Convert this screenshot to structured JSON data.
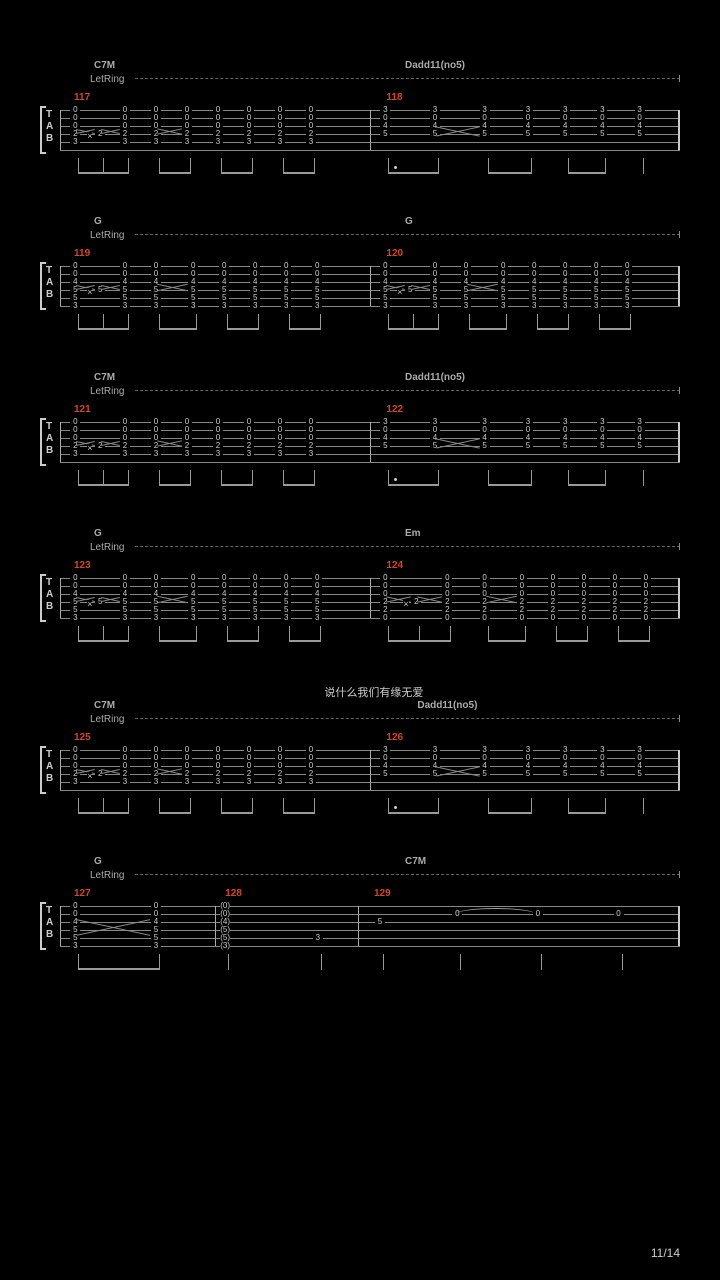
{
  "page_number": "11/14",
  "background_color": "#000000",
  "staff_line_color": "#888888",
  "text_color": "#cccccc",
  "measure_num_color": "#d64520",
  "chord_color": "#aaaaaa",
  "tab_label": {
    "l1": "T",
    "l2": "A",
    "l3": "B"
  },
  "letring_text": "LetRing",
  "lyric": "说什么我们有缘无爱",
  "systems": [
    {
      "chord_left": "C7M",
      "chord_right": "Dadd11(no5)",
      "measure_left": "117",
      "measure_right": "118",
      "has_letring": true,
      "lyric_above": false,
      "chord_right_offset": 0.55,
      "pattern": "A"
    },
    {
      "chord_left": "G",
      "chord_right": "G",
      "measure_left": "119",
      "measure_right": "120",
      "has_letring": true,
      "lyric_above": false,
      "chord_right_offset": 0.55,
      "pattern": "B"
    },
    {
      "chord_left": "C7M",
      "chord_right": "Dadd11(no5)",
      "measure_left": "121",
      "measure_right": "122",
      "has_letring": true,
      "lyric_above": false,
      "chord_right_offset": 0.55,
      "pattern": "A"
    },
    {
      "chord_left": "G",
      "chord_right": "Em",
      "measure_left": "123",
      "measure_right": "124",
      "has_letring": true,
      "lyric_above": false,
      "chord_right_offset": 0.55,
      "pattern": "C"
    },
    {
      "chord_left": "C7M",
      "chord_right": "Dadd11(no5)",
      "measure_left": "125",
      "measure_right": "126",
      "has_letring": true,
      "lyric_above": true,
      "lyric_offset": 0.42,
      "chord_right_offset": 0.57,
      "pattern": "A"
    },
    {
      "chord_left": "G",
      "chord_right": "C7M",
      "measure_left": "127",
      "measure_mid": "128",
      "measure_right": "129",
      "has_letring": true,
      "lyric_above": false,
      "chord_right_offset": 0.55,
      "pattern": "D"
    }
  ],
  "layout": {
    "staff_width": 620,
    "staff_left_inset": 24,
    "string_count": 6,
    "string_spacing": 8
  },
  "columns": {
    "A_left": [
      {
        "x": 0.04,
        "frets": [
          "0",
          "0",
          "0",
          "2",
          "3"
        ],
        "beam_group": 0,
        "slide_to_next": true
      },
      {
        "x": 0.12,
        "frets": [
          "2"
        ],
        "strings": [
          3
        ],
        "beam_group": 0,
        "xmark": true,
        "slide_to_next": true
      },
      {
        "x": 0.2,
        "frets": [
          "0",
          "0",
          "0",
          "2",
          "3"
        ],
        "beam_group": 0
      },
      {
        "x": 0.3,
        "frets": [
          "0",
          "0",
          "0",
          "2",
          "3"
        ],
        "beam_group": 1,
        "slide_to_next": true
      },
      {
        "x": 0.4,
        "frets": [
          "0",
          "0",
          "0",
          "2",
          "3"
        ],
        "beam_group": 1
      },
      {
        "x": 0.5,
        "frets": [
          "0",
          "0",
          "0",
          "2",
          "3"
        ],
        "beam_group": 2
      },
      {
        "x": 0.6,
        "frets": [
          "0",
          "0",
          "0",
          "2",
          "3"
        ],
        "beam_group": 2
      },
      {
        "x": 0.7,
        "frets": [
          "0",
          "0",
          "0",
          "2",
          "3"
        ],
        "beam_group": 3
      },
      {
        "x": 0.8,
        "frets": [
          "0",
          "0",
          "0",
          "2",
          "3"
        ],
        "beam_group": 3
      }
    ],
    "A_right": [
      {
        "x": 0.04,
        "frets": [
          "3",
          "0",
          "4",
          "5"
        ],
        "strings": [
          0,
          1,
          2,
          3
        ],
        "beam_group": 0,
        "dotted": true
      },
      {
        "x": 0.2,
        "frets": [
          "3",
          "0",
          "4",
          "5"
        ],
        "strings": [
          0,
          1,
          2,
          3
        ],
        "beam_group": 0,
        "slide_to_next": true
      },
      {
        "x": 0.36,
        "frets": [
          "3",
          "0",
          "4",
          "5"
        ],
        "strings": [
          0,
          1,
          2,
          3
        ],
        "beam_group": 1
      },
      {
        "x": 0.5,
        "frets": [
          "3",
          "0",
          "4",
          "5"
        ],
        "strings": [
          0,
          1,
          2,
          3
        ],
        "beam_group": 1
      },
      {
        "x": 0.62,
        "frets": [
          "3",
          "0",
          "4",
          "5"
        ],
        "strings": [
          0,
          1,
          2,
          3
        ],
        "beam_group": 2
      },
      {
        "x": 0.74,
        "frets": [
          "3",
          "0",
          "4",
          "5"
        ],
        "strings": [
          0,
          1,
          2,
          3
        ],
        "beam_group": 2
      },
      {
        "x": 0.86,
        "frets": [
          "3",
          "0",
          "4",
          "5"
        ],
        "strings": [
          0,
          1,
          2,
          3
        ],
        "beam_group": 3
      }
    ],
    "B_left": [
      {
        "x": 0.04,
        "frets": [
          "0",
          "0",
          "4",
          "5",
          "5",
          "3"
        ],
        "strings": [
          0,
          1,
          2,
          3,
          4,
          5
        ],
        "beam_group": 0,
        "slide_to_next": true
      },
      {
        "x": 0.12,
        "frets": [
          "5"
        ],
        "strings": [
          3
        ],
        "beam_group": 0,
        "xmark": true,
        "slide_to_next": true
      },
      {
        "x": 0.2,
        "frets": [
          "0",
          "0",
          "4",
          "5",
          "5",
          "3"
        ],
        "strings": [
          0,
          1,
          2,
          3,
          4,
          5
        ],
        "beam_group": 0
      },
      {
        "x": 0.3,
        "frets": [
          "0",
          "0",
          "4",
          "5",
          "5",
          "3"
        ],
        "strings": [
          0,
          1,
          2,
          3,
          4,
          5
        ],
        "beam_group": 1,
        "slide_to_next": true
      },
      {
        "x": 0.42,
        "frets": [
          "0",
          "0",
          "4",
          "5",
          "5",
          "3"
        ],
        "strings": [
          0,
          1,
          2,
          3,
          4,
          5
        ],
        "beam_group": 1
      },
      {
        "x": 0.52,
        "frets": [
          "0",
          "0",
          "4",
          "5",
          "5",
          "3"
        ],
        "strings": [
          0,
          1,
          2,
          3,
          4,
          5
        ],
        "beam_group": 2
      },
      {
        "x": 0.62,
        "frets": [
          "0",
          "0",
          "4",
          "5",
          "5",
          "3"
        ],
        "strings": [
          0,
          1,
          2,
          3,
          4,
          5
        ],
        "beam_group": 2
      },
      {
        "x": 0.72,
        "frets": [
          "0",
          "0",
          "4",
          "5",
          "5",
          "3"
        ],
        "strings": [
          0,
          1,
          2,
          3,
          4,
          5
        ],
        "beam_group": 3
      },
      {
        "x": 0.82,
        "frets": [
          "0",
          "0",
          "4",
          "5",
          "5",
          "3"
        ],
        "strings": [
          0,
          1,
          2,
          3,
          4,
          5
        ],
        "beam_group": 3
      }
    ],
    "B_right": [
      {
        "x": 0.04,
        "frets": [
          "0",
          "0",
          "4",
          "5",
          "5",
          "3"
        ],
        "strings": [
          0,
          1,
          2,
          3,
          4,
          5
        ],
        "beam_group": 0,
        "slide_to_next": true
      },
      {
        "x": 0.12,
        "frets": [
          "5"
        ],
        "strings": [
          3
        ],
        "beam_group": 0,
        "xmark": true,
        "slide_to_next": true
      },
      {
        "x": 0.2,
        "frets": [
          "0",
          "0",
          "4",
          "5",
          "5",
          "3"
        ],
        "strings": [
          0,
          1,
          2,
          3,
          4,
          5
        ],
        "beam_group": 0
      },
      {
        "x": 0.3,
        "frets": [
          "0",
          "0",
          "4",
          "5",
          "5",
          "3"
        ],
        "strings": [
          0,
          1,
          2,
          3,
          4,
          5
        ],
        "beam_group": 1,
        "slide_to_next": true
      },
      {
        "x": 0.42,
        "frets": [
          "0",
          "0",
          "4",
          "5",
          "5",
          "3"
        ],
        "strings": [
          0,
          1,
          2,
          3,
          4,
          5
        ],
        "beam_group": 1
      },
      {
        "x": 0.52,
        "frets": [
          "0",
          "0",
          "4",
          "5",
          "5",
          "3"
        ],
        "strings": [
          0,
          1,
          2,
          3,
          4,
          5
        ],
        "beam_group": 2
      },
      {
        "x": 0.62,
        "frets": [
          "0",
          "0",
          "4",
          "5",
          "5",
          "3"
        ],
        "strings": [
          0,
          1,
          2,
          3,
          4,
          5
        ],
        "beam_group": 2
      },
      {
        "x": 0.72,
        "frets": [
          "0",
          "0",
          "4",
          "5",
          "5",
          "3"
        ],
        "strings": [
          0,
          1,
          2,
          3,
          4,
          5
        ],
        "beam_group": 3
      },
      {
        "x": 0.82,
        "frets": [
          "0",
          "0",
          "4",
          "5",
          "5",
          "3"
        ],
        "strings": [
          0,
          1,
          2,
          3,
          4,
          5
        ],
        "beam_group": 3
      }
    ],
    "C_right": [
      {
        "x": 0.04,
        "frets": [
          "0",
          "0",
          "0",
          "2",
          "2",
          "0"
        ],
        "strings": [
          0,
          1,
          2,
          3,
          4,
          5
        ],
        "beam_group": 0,
        "slide_to_next": true
      },
      {
        "x": 0.14,
        "frets": [
          "2"
        ],
        "strings": [
          3
        ],
        "beam_group": 0,
        "xmark": true,
        "slide_to_next": true
      },
      {
        "x": 0.24,
        "frets": [
          "0",
          "0",
          "0",
          "2",
          "2",
          "0"
        ],
        "strings": [
          0,
          1,
          2,
          3,
          4,
          5
        ],
        "beam_group": 0
      },
      {
        "x": 0.36,
        "frets": [
          "0",
          "0",
          "0",
          "2",
          "2",
          "0"
        ],
        "strings": [
          0,
          1,
          2,
          3,
          4,
          5
        ],
        "beam_group": 1,
        "slide_to_next": true
      },
      {
        "x": 0.48,
        "frets": [
          "0",
          "0",
          "0",
          "2",
          "2",
          "0"
        ],
        "strings": [
          0,
          1,
          2,
          3,
          4,
          5
        ],
        "beam_group": 1
      },
      {
        "x": 0.58,
        "frets": [
          "0",
          "0",
          "0",
          "2",
          "2",
          "0"
        ],
        "strings": [
          0,
          1,
          2,
          3,
          4,
          5
        ],
        "beam_group": 2
      },
      {
        "x": 0.68,
        "frets": [
          "0",
          "0",
          "0",
          "2",
          "2",
          "0"
        ],
        "strings": [
          0,
          1,
          2,
          3,
          4,
          5
        ],
        "beam_group": 2
      },
      {
        "x": 0.78,
        "frets": [
          "0",
          "0",
          "0",
          "2",
          "2",
          "0"
        ],
        "strings": [
          0,
          1,
          2,
          3,
          4,
          5
        ],
        "beam_group": 3
      },
      {
        "x": 0.88,
        "frets": [
          "0",
          "0",
          "0",
          "2",
          "2",
          "0"
        ],
        "strings": [
          0,
          1,
          2,
          3,
          4,
          5
        ],
        "beam_group": 3
      }
    ],
    "D_m1": [
      {
        "x": 0.08,
        "frets": [
          "0",
          "0",
          "4",
          "5",
          "5",
          "3"
        ],
        "strings": [
          0,
          1,
          2,
          3,
          4,
          5
        ],
        "beam_group": 0,
        "slide_to_next": true
      },
      {
        "x": 0.6,
        "frets": [
          "0",
          "0",
          "4",
          "5",
          "5",
          "3"
        ],
        "strings": [
          0,
          1,
          2,
          3,
          4,
          5
        ],
        "beam_group": 0
      }
    ],
    "D_m2": [
      {
        "x": 0.05,
        "frets": [
          "(0)",
          "(0)",
          "(4)",
          "(5)",
          "(5)",
          "(3)"
        ],
        "strings": [
          0,
          1,
          2,
          3,
          4,
          5
        ],
        "beam_group": 0
      },
      {
        "x": 0.7,
        "frets": [
          "3"
        ],
        "strings": [
          4
        ],
        "beam_group": 1
      }
    ],
    "D_m3": [
      {
        "x": 0.06,
        "frets": [
          "5"
        ],
        "strings": [
          2
        ],
        "beam_group": 0
      },
      {
        "x": 0.3,
        "frets": [
          "0"
        ],
        "strings": [
          1
        ],
        "beam_group": 1,
        "tie_to_next": true
      },
      {
        "x": 0.55,
        "frets": [
          "0"
        ],
        "strings": [
          1
        ],
        "beam_group": 2
      },
      {
        "x": 0.8,
        "frets": [
          "0"
        ],
        "strings": [
          1
        ],
        "beam_group": 3
      }
    ]
  }
}
